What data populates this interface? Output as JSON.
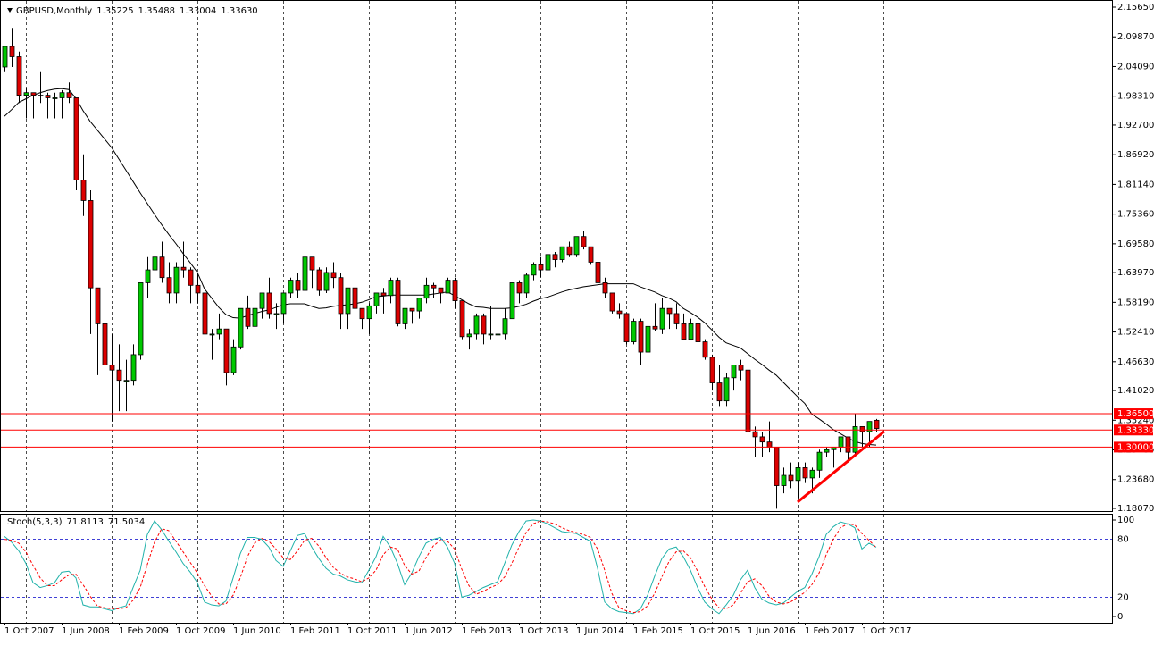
{
  "chart_data": [
    {
      "type": "candlestick",
      "title": "GBPUSD,Monthly",
      "header_values": [
        "1.35225",
        "1.35488",
        "1.33004",
        "1.33630"
      ],
      "x": [
        "1 Oct 2007",
        null,
        null,
        null,
        null,
        null,
        null,
        null,
        "1 Jun 2008",
        null,
        null,
        null,
        null,
        null,
        null,
        null,
        "1 Feb 2009",
        null,
        null,
        null,
        null,
        null,
        null,
        null,
        "1 Oct 2009",
        null,
        null,
        null,
        null,
        null,
        null,
        null,
        "1 Jun 2010",
        null,
        null,
        null,
        null,
        null,
        null,
        null,
        "1 Feb 2011",
        null,
        null,
        null,
        null,
        null,
        null,
        null,
        "1 Oct 2011",
        null,
        null,
        null,
        null,
        null,
        null,
        null,
        "1 Jun 2012",
        null,
        null,
        null,
        null,
        null,
        null,
        null,
        "1 Feb 2013",
        null,
        null,
        null,
        null,
        null,
        null,
        null,
        "1 Oct 2013",
        null,
        null,
        null,
        null,
        null,
        null,
        null,
        "1 Jun 2014",
        null,
        null,
        null,
        null,
        null,
        null,
        null,
        "1 Feb 2015",
        null,
        null,
        null,
        null,
        null,
        null,
        null,
        "1 Oct 2015",
        null,
        null,
        null,
        null,
        null,
        null,
        null,
        "1 Jun 2016",
        null,
        null,
        null,
        null,
        null,
        null,
        null,
        "1 Feb 2017",
        null,
        null,
        null,
        null,
        null,
        null,
        null,
        "1 Oct 2017",
        null,
        null
      ],
      "open": [
        2.04,
        2.08,
        2.06,
        1.985,
        1.99,
        1.985,
        1.985,
        1.98,
        1.98,
        1.99,
        1.98,
        1.82,
        1.78,
        1.61,
        1.54,
        1.46,
        1.45,
        1.43,
        1.43,
        1.48,
        1.62,
        1.645,
        1.67,
        1.63,
        1.6,
        1.65,
        1.645,
        1.615,
        1.6,
        1.52,
        1.52,
        1.53,
        1.445,
        1.495,
        1.57,
        1.535,
        1.57,
        1.6,
        1.56,
        1.56,
        1.6,
        1.625,
        1.605,
        1.67,
        1.645,
        1.605,
        1.64,
        1.63,
        1.56,
        1.61,
        1.57,
        1.55,
        1.575,
        1.6,
        1.595,
        1.625,
        1.54,
        1.57,
        1.565,
        1.59,
        1.615,
        1.61,
        1.6,
        1.625,
        1.585,
        1.515,
        1.52,
        1.555,
        1.52,
        1.52,
        1.52,
        1.55,
        1.62,
        1.6,
        1.635,
        1.655,
        1.645,
        1.675,
        1.665,
        1.69,
        1.675,
        1.71,
        1.69,
        1.66,
        1.62,
        1.6,
        1.565,
        1.56,
        1.505,
        1.545,
        1.485,
        1.535,
        1.53,
        1.57,
        1.56,
        1.54,
        1.51,
        1.54,
        1.505,
        1.475,
        1.425,
        1.39,
        1.435,
        1.46,
        1.45,
        1.33,
        1.32,
        1.31,
        1.3,
        1.225,
        1.245,
        1.235,
        1.26,
        1.24,
        1.255,
        1.29,
        1.295,
        1.3,
        1.32,
        1.29,
        1.34,
        1.33,
        1.35225
      ],
      "high": [
        2.08,
        2.116,
        2.07,
        2.0,
        1.99,
        2.03,
        1.99,
        1.99,
        1.995,
        2.01,
        1.98,
        1.87,
        1.8,
        1.61,
        1.55,
        1.52,
        1.5,
        1.47,
        1.5,
        1.62,
        1.67,
        1.67,
        1.7,
        1.66,
        1.66,
        1.7,
        1.65,
        1.64,
        1.61,
        1.53,
        1.56,
        1.53,
        1.51,
        1.57,
        1.595,
        1.59,
        1.6,
        1.63,
        1.58,
        1.6,
        1.63,
        1.64,
        1.67,
        1.67,
        1.65,
        1.65,
        1.66,
        1.64,
        1.61,
        1.61,
        1.57,
        1.58,
        1.6,
        1.61,
        1.63,
        1.63,
        1.57,
        1.57,
        1.59,
        1.63,
        1.62,
        1.61,
        1.63,
        1.63,
        1.585,
        1.53,
        1.56,
        1.56,
        1.575,
        1.54,
        1.57,
        1.62,
        1.625,
        1.64,
        1.66,
        1.67,
        1.68,
        1.68,
        1.69,
        1.7,
        1.71,
        1.72,
        1.69,
        1.66,
        1.63,
        1.6,
        1.58,
        1.56,
        1.55,
        1.55,
        1.54,
        1.58,
        1.59,
        1.57,
        1.58,
        1.56,
        1.55,
        1.54,
        1.51,
        1.48,
        1.46,
        1.445,
        1.46,
        1.47,
        1.5,
        1.34,
        1.33,
        1.35,
        1.3,
        1.26,
        1.27,
        1.27,
        1.27,
        1.26,
        1.295,
        1.3,
        1.3,
        1.32,
        1.32,
        1.365,
        1.34,
        1.35,
        1.35488
      ],
      "low": [
        2.03,
        2.04,
        1.97,
        1.94,
        1.94,
        1.97,
        1.94,
        1.94,
        1.94,
        1.97,
        1.8,
        1.75,
        1.52,
        1.44,
        1.43,
        1.35,
        1.37,
        1.37,
        1.42,
        1.47,
        1.59,
        1.6,
        1.62,
        1.58,
        1.58,
        1.63,
        1.58,
        1.58,
        1.52,
        1.47,
        1.51,
        1.42,
        1.44,
        1.49,
        1.53,
        1.52,
        1.55,
        1.55,
        1.53,
        1.54,
        1.59,
        1.59,
        1.6,
        1.61,
        1.595,
        1.6,
        1.61,
        1.53,
        1.53,
        1.53,
        1.53,
        1.52,
        1.56,
        1.56,
        1.58,
        1.535,
        1.53,
        1.54,
        1.55,
        1.58,
        1.59,
        1.58,
        1.6,
        1.57,
        1.51,
        1.49,
        1.51,
        1.5,
        1.51,
        1.48,
        1.51,
        1.55,
        1.58,
        1.59,
        1.625,
        1.63,
        1.64,
        1.65,
        1.66,
        1.67,
        1.67,
        1.685,
        1.655,
        1.61,
        1.59,
        1.56,
        1.55,
        1.5,
        1.5,
        1.46,
        1.46,
        1.525,
        1.52,
        1.53,
        1.53,
        1.51,
        1.51,
        1.5,
        1.47,
        1.41,
        1.38,
        1.38,
        1.41,
        1.43,
        1.32,
        1.28,
        1.28,
        1.29,
        1.18,
        1.21,
        1.22,
        1.2,
        1.23,
        1.21,
        1.24,
        1.28,
        1.26,
        1.29,
        1.27,
        1.28,
        1.3,
        1.3,
        1.33004
      ],
      "close": [
        2.08,
        2.06,
        1.985,
        1.99,
        1.985,
        1.985,
        1.98,
        1.98,
        1.99,
        1.98,
        1.82,
        1.78,
        1.61,
        1.54,
        1.46,
        1.45,
        1.43,
        1.43,
        1.48,
        1.62,
        1.645,
        1.67,
        1.63,
        1.6,
        1.65,
        1.645,
        1.615,
        1.6,
        1.52,
        1.52,
        1.53,
        1.445,
        1.495,
        1.57,
        1.535,
        1.57,
        1.6,
        1.56,
        1.56,
        1.6,
        1.625,
        1.605,
        1.67,
        1.645,
        1.605,
        1.64,
        1.63,
        1.56,
        1.61,
        1.57,
        1.55,
        1.575,
        1.6,
        1.595,
        1.625,
        1.54,
        1.57,
        1.565,
        1.59,
        1.615,
        1.61,
        1.6,
        1.625,
        1.585,
        1.515,
        1.52,
        1.555,
        1.52,
        1.52,
        1.52,
        1.55,
        1.62,
        1.6,
        1.635,
        1.655,
        1.645,
        1.675,
        1.665,
        1.69,
        1.675,
        1.71,
        1.69,
        1.66,
        1.62,
        1.6,
        1.565,
        1.56,
        1.505,
        1.545,
        1.485,
        1.535,
        1.53,
        1.57,
        1.56,
        1.54,
        1.51,
        1.54,
        1.505,
        1.475,
        1.425,
        1.39,
        1.435,
        1.46,
        1.45,
        1.33,
        1.32,
        1.31,
        1.3,
        1.225,
        1.245,
        1.235,
        1.26,
        1.24,
        1.255,
        1.29,
        1.295,
        1.3,
        1.32,
        1.29,
        1.34,
        1.33,
        1.35,
        1.3363
      ],
      "up_color": "#00c800",
      "down_color": "#dd0000",
      "ma": {
        "color": "#000000",
        "values": [
          1.944,
          1.957,
          1.971,
          1.978,
          1.985,
          1.99,
          1.994,
          1.997,
          1.998,
          1.996,
          1.979,
          1.955,
          1.934,
          1.917,
          1.9,
          1.883,
          1.861,
          1.839,
          1.817,
          1.795,
          1.774,
          1.753,
          1.733,
          1.714,
          1.696,
          1.677,
          1.659,
          1.64,
          1.608,
          1.59,
          1.572,
          1.558,
          1.552,
          1.551,
          1.556,
          1.56,
          1.564,
          1.567,
          1.572,
          1.577,
          1.579,
          1.579,
          1.579,
          1.574,
          1.57,
          1.571,
          1.574,
          1.576,
          1.577,
          1.579,
          1.582,
          1.587,
          1.593,
          1.594,
          1.596,
          1.596,
          1.596,
          1.596,
          1.596,
          1.596,
          1.598,
          1.6,
          1.602,
          1.595,
          1.587,
          1.579,
          1.573,
          1.572,
          1.57,
          1.57,
          1.57,
          1.571,
          1.574,
          1.578,
          1.584,
          1.589,
          1.592,
          1.597,
          1.602,
          1.606,
          1.609,
          1.612,
          1.614,
          1.616,
          1.618,
          1.618,
          1.618,
          1.618,
          1.618,
          1.612,
          1.607,
          1.602,
          1.595,
          1.59,
          1.583,
          1.57,
          1.562,
          1.553,
          1.542,
          1.528,
          1.514,
          1.503,
          1.498,
          1.493,
          1.482,
          1.471,
          1.461,
          1.45,
          1.44,
          1.426,
          1.412,
          1.398,
          1.385,
          1.364,
          1.355,
          1.345,
          1.334,
          1.326,
          1.318,
          1.311,
          1.307,
          1.305,
          1.304
        ]
      },
      "levels": [
        {
          "value": 1.365,
          "label": "1.36500"
        },
        {
          "value": 1.3333,
          "label": "1.33330"
        },
        {
          "value": 1.3,
          "label": "1.30000"
        }
      ],
      "level_color": "#ff0000",
      "trend_line": {
        "color": "#ff0000",
        "values": [
          1.193,
          1.3305
        ]
      },
      "ylim": [
        1.1807,
        2.1565
      ],
      "yticks": [
        {
          "value": 1.1807,
          "label": "1.18070"
        },
        {
          "value": 1.2368,
          "label": "1.23680"
        },
        {
          "value": 1.2946,
          "label": "1.29460"
        },
        {
          "value": 1.3524,
          "label": "1.35240"
        },
        {
          "value": 1.4102,
          "label": "1.41020"
        },
        {
          "value": 1.4663,
          "label": "1.46630"
        },
        {
          "value": 1.5241,
          "label": "1.52410"
        },
        {
          "value": 1.5819,
          "label": "1.58190"
        },
        {
          "value": 1.6397,
          "label": "1.63970"
        },
        {
          "value": 1.6958,
          "label": "1.69580"
        },
        {
          "value": 1.7536,
          "label": "1.75360"
        },
        {
          "value": 1.8114,
          "label": "1.81140"
        },
        {
          "value": 1.8692,
          "label": "1.86920"
        },
        {
          "value": 1.927,
          "label": "1.92700"
        },
        {
          "value": 1.9831,
          "label": "1.98310"
        },
        {
          "value": 2.0409,
          "label": "2.04090"
        },
        {
          "value": 2.0987,
          "label": "2.09870"
        },
        {
          "value": 2.1565,
          "label": "2.15650"
        }
      ],
      "grid": true
    },
    {
      "type": "line",
      "title": "Stoch(5,3,3)",
      "header_values": [
        "71.8113",
        "71.5034"
      ],
      "series": [
        {
          "color": "#20b2aa",
          "values": [
            83,
            77,
            68,
            55,
            35,
            30,
            32,
            35,
            46,
            47,
            40,
            12,
            10,
            10,
            8,
            6,
            9,
            11,
            30,
            48,
            85,
            99,
            90,
            78,
            67,
            55,
            46,
            35,
            15,
            12,
            11,
            16,
            40,
            65,
            82,
            82,
            80,
            72,
            58,
            52,
            68,
            84,
            86,
            72,
            60,
            50,
            44,
            42,
            38,
            36,
            35,
            48,
            62,
            83,
            72,
            55,
            33,
            45,
            62,
            76,
            80,
            82,
            72,
            55,
            20,
            22,
            26,
            30,
            33,
            36,
            55,
            74,
            88,
            99,
            100,
            99,
            96,
            92,
            88,
            87,
            86,
            82,
            78,
            50,
            15,
            8,
            5,
            4,
            3,
            8,
            22,
            42,
            60,
            70,
            72,
            62,
            48,
            30,
            15,
            8,
            3,
            12,
            22,
            38,
            48,
            30,
            18,
            14,
            12,
            14,
            20,
            26,
            30,
            44,
            62,
            85,
            93,
            98,
            96,
            92,
            70,
            76,
            71.8113
          ]
        },
        {
          "color": "#ff0000",
          "dashed": true,
          "values": [
            80,
            79,
            76,
            67,
            53,
            40,
            32,
            32,
            38,
            43,
            44,
            33,
            21,
            11,
            9,
            8,
            8,
            9,
            17,
            30,
            54,
            77,
            91,
            89,
            78,
            67,
            56,
            45,
            32,
            21,
            13,
            13,
            22,
            40,
            62,
            76,
            81,
            78,
            70,
            61,
            59,
            68,
            79,
            81,
            73,
            61,
            51,
            45,
            41,
            39,
            36,
            40,
            48,
            64,
            72,
            70,
            53,
            44,
            47,
            61,
            73,
            79,
            78,
            70,
            49,
            32,
            23,
            26,
            30,
            33,
            41,
            55,
            72,
            87,
            96,
            99,
            98,
            96,
            92,
            89,
            87,
            85,
            82,
            70,
            48,
            24,
            9,
            6,
            4,
            5,
            11,
            24,
            41,
            57,
            67,
            68,
            61,
            47,
            31,
            18,
            9,
            8,
            12,
            24,
            36,
            39,
            32,
            21,
            15,
            13,
            15,
            20,
            25,
            33,
            45,
            64,
            80,
            92,
            96,
            95,
            86,
            79,
            71.5034
          ]
        }
      ],
      "ylim": [
        0,
        100
      ],
      "yticks": [
        0,
        20,
        80,
        100
      ]
    }
  ]
}
